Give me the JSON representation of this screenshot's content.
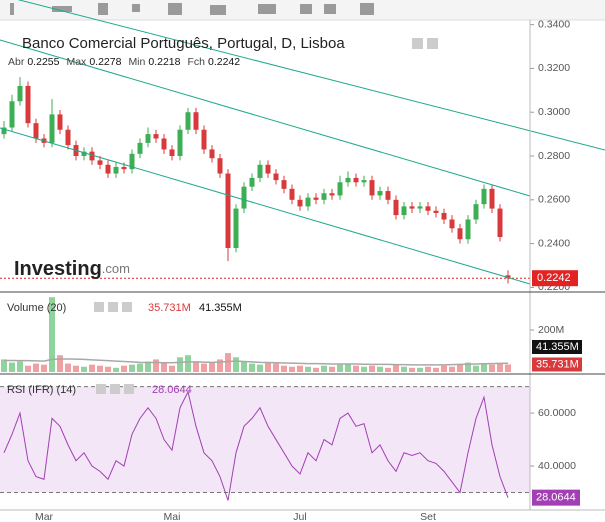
{
  "chart_data": [
    {
      "type": "candlestick",
      "title": "Banco Comercial Português, Portugal, D, Lisboa",
      "ohlc_labels": [
        "Abr",
        "Max",
        "Min",
        "Fch"
      ],
      "logo": [
        "Investing",
        ".com"
      ],
      "categories": [
        null,
        null,
        null,
        null,
        null,
        "Mar",
        null,
        null,
        null,
        null,
        null,
        null,
        null,
        null,
        null,
        null,
        null,
        null,
        null,
        null,
        null,
        "Mai",
        null,
        null,
        null,
        null,
        null,
        null,
        null,
        null,
        null,
        null,
        null,
        null,
        null,
        null,
        null,
        "Jul",
        null,
        null,
        null,
        null,
        null,
        null,
        null,
        null,
        null,
        null,
        null,
        null,
        null,
        null,
        null,
        "Set",
        null,
        null,
        null,
        null,
        null,
        null,
        null,
        null,
        null,
        null
      ],
      "open": [
        0.29,
        0.293,
        0.305,
        0.312,
        0.295,
        0.288,
        0.286,
        0.299,
        0.292,
        0.285,
        0.28,
        0.282,
        0.278,
        0.276,
        0.272,
        0.275,
        0.274,
        0.281,
        0.286,
        0.29,
        0.288,
        0.283,
        0.28,
        0.292,
        0.3,
        0.292,
        0.283,
        0.279,
        0.272,
        0.238,
        0.256,
        0.266,
        0.27,
        0.276,
        0.272,
        0.269,
        0.265,
        0.26,
        0.257,
        0.261,
        0.26,
        0.263,
        0.262,
        0.268,
        0.27,
        0.268,
        0.269,
        0.262,
        0.264,
        0.26,
        0.253,
        0.257,
        0.256,
        0.257,
        0.255,
        0.254,
        0.251,
        0.247,
        0.242,
        0.251,
        0.258,
        0.265,
        0.256,
        0.2255
      ],
      "high": [
        0.296,
        0.308,
        0.316,
        0.314,
        0.297,
        0.29,
        0.306,
        0.301,
        0.294,
        0.287,
        0.284,
        0.284,
        0.28,
        0.278,
        0.277,
        0.277,
        0.283,
        0.288,
        0.293,
        0.292,
        0.29,
        0.285,
        0.294,
        0.302,
        0.302,
        0.294,
        0.285,
        0.281,
        0.274,
        0.258,
        0.268,
        0.272,
        0.278,
        0.278,
        0.274,
        0.271,
        0.267,
        0.262,
        0.263,
        0.263,
        0.265,
        0.265,
        0.271,
        0.273,
        0.272,
        0.271,
        0.271,
        0.266,
        0.266,
        0.262,
        0.259,
        0.259,
        0.259,
        0.259,
        0.257,
        0.256,
        0.253,
        0.249,
        0.253,
        0.26,
        0.267,
        0.267,
        0.258,
        0.2278
      ],
      "low": [
        0.288,
        0.291,
        0.303,
        0.293,
        0.286,
        0.284,
        0.284,
        0.29,
        0.283,
        0.278,
        0.278,
        0.276,
        0.274,
        0.27,
        0.27,
        0.272,
        0.272,
        0.279,
        0.284,
        0.286,
        0.281,
        0.278,
        0.278,
        0.29,
        0.29,
        0.281,
        0.277,
        0.27,
        0.232,
        0.236,
        0.254,
        0.264,
        0.268,
        0.27,
        0.267,
        0.263,
        0.258,
        0.255,
        0.255,
        0.258,
        0.258,
        0.26,
        0.26,
        0.266,
        0.266,
        0.266,
        0.26,
        0.26,
        0.258,
        0.251,
        0.251,
        0.254,
        0.254,
        0.253,
        0.252,
        0.249,
        0.245,
        0.24,
        0.24,
        0.249,
        0.256,
        0.254,
        0.241,
        0.2218
      ],
      "close": [
        0.293,
        0.305,
        0.312,
        0.295,
        0.288,
        0.286,
        0.299,
        0.292,
        0.285,
        0.28,
        0.282,
        0.278,
        0.276,
        0.272,
        0.275,
        0.274,
        0.281,
        0.286,
        0.29,
        0.288,
        0.283,
        0.28,
        0.292,
        0.3,
        0.292,
        0.283,
        0.279,
        0.272,
        0.238,
        0.256,
        0.266,
        0.27,
        0.276,
        0.272,
        0.269,
        0.265,
        0.26,
        0.257,
        0.261,
        0.26,
        0.263,
        0.262,
        0.268,
        0.27,
        0.268,
        0.269,
        0.262,
        0.264,
        0.26,
        0.253,
        0.257,
        0.256,
        0.257,
        0.255,
        0.254,
        0.251,
        0.247,
        0.242,
        0.251,
        0.258,
        0.265,
        0.256,
        0.243,
        0.2242
      ],
      "up_color": "#3cae54",
      "down_color": "#d8393a",
      "last_color": "#e32222",
      "ylim": [
        0.2179,
        0.3412
      ],
      "yticks": [
        {
          "value": 0.22,
          "label": "0.2200"
        },
        {
          "value": 0.24,
          "label": "0.2400"
        },
        {
          "value": 0.26,
          "label": "0.2600"
        },
        {
          "value": 0.28,
          "label": "0.2800"
        },
        {
          "value": 0.3,
          "label": "0.3000"
        },
        {
          "value": 0.32,
          "label": "0.3200"
        },
        {
          "value": 0.34,
          "label": "0.3400"
        }
      ]
    },
    {
      "type": "bar",
      "title": "Volume (20)",
      "values": [
        60,
        45,
        50,
        30,
        40,
        35,
        356,
        80,
        40,
        30,
        25,
        35,
        30,
        25,
        20,
        30,
        35,
        40,
        50,
        60,
        45,
        30,
        70,
        80,
        50,
        40,
        45,
        60,
        90,
        70,
        50,
        40,
        35,
        45,
        40,
        30,
        25,
        30,
        25,
        20,
        30,
        25,
        35,
        40,
        30,
        25,
        30,
        25,
        20,
        35,
        25,
        20,
        20,
        25,
        20,
        30,
        25,
        35,
        45,
        30,
        40,
        35,
        40,
        35.731
      ],
      "average": [
        55,
        55,
        54,
        54,
        53,
        52,
        60,
        62,
        62,
        61,
        60,
        58,
        56,
        54,
        52,
        50,
        48,
        46,
        45,
        45,
        44,
        44,
        46,
        48,
        48,
        47,
        46,
        47,
        50,
        52,
        50,
        48,
        46,
        45,
        44,
        43,
        42,
        41,
        40,
        40,
        39,
        38,
        38,
        38,
        38,
        37,
        36,
        36,
        36,
        35,
        35,
        34,
        34,
        34,
        34,
        34,
        35,
        36,
        37,
        38,
        39,
        40,
        41,
        41.355
      ],
      "last_value_label": "35.731M",
      "last_average_label": "41.355M",
      "up_color": "#8fd49c",
      "down_color": "#f0a0a0",
      "average_color": "#a8a8a8",
      "ylim": [
        0,
        376
      ],
      "yticks": [
        {
          "value": 200,
          "label": "200M"
        }
      ]
    },
    {
      "type": "line",
      "title": "RSI (IFR) (14)",
      "values": [
        45,
        52,
        60,
        42,
        36,
        35,
        58,
        55,
        48,
        42,
        45,
        40,
        38,
        35,
        42,
        40,
        52,
        58,
        62,
        58,
        50,
        46,
        62,
        68,
        55,
        45,
        42,
        36,
        27,
        45,
        55,
        58,
        62,
        55,
        50,
        45,
        40,
        37,
        45,
        42,
        50,
        48,
        58,
        60,
        55,
        56,
        45,
        48,
        42,
        38,
        45,
        44,
        45,
        42,
        41,
        38,
        34,
        30,
        45,
        58,
        66,
        48,
        36,
        28.0644
      ],
      "color": "#a33fb5",
      "levels": [
        30,
        70
      ],
      "ylim": [
        23.4,
        74.0
      ],
      "yticks": [
        {
          "value": 40,
          "label": "40.0000"
        },
        {
          "value": 60,
          "label": "60.0000"
        }
      ]
    }
  ]
}
